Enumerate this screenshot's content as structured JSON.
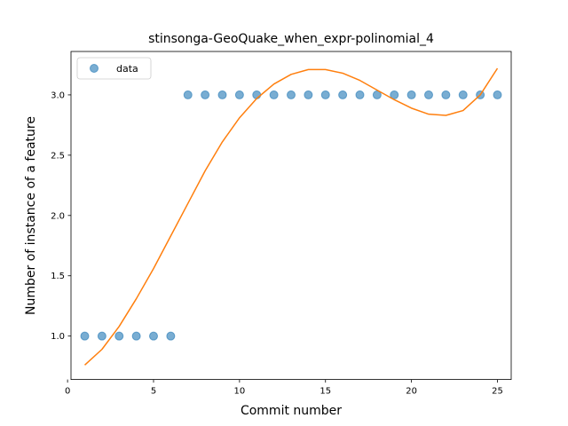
{
  "chart_data": {
    "type": "scatter",
    "title": "stinsonga-GeoQuake_when_expr-polinomial_4",
    "xlabel": "Commit number",
    "ylabel": "Number of instance of a feature",
    "xlim": [
      0.2,
      25.8
    ],
    "ylim": [
      0.64,
      3.36
    ],
    "xticks": [
      0,
      5,
      10,
      15,
      20,
      25
    ],
    "yticks": [
      1.0,
      1.5,
      2.0,
      2.5,
      3.0
    ],
    "xtick_labels": [
      "0",
      "5",
      "10",
      "15",
      "20",
      "25"
    ],
    "ytick_labels": [
      "1.0",
      "1.5",
      "2.0",
      "2.5",
      "3.0"
    ],
    "grid": false,
    "legend_position": "top-left",
    "series": [
      {
        "name": "data",
        "kind": "scatter",
        "color": "#1f77b4",
        "x": [
          1,
          2,
          3,
          4,
          5,
          6,
          7,
          8,
          9,
          10,
          11,
          12,
          13,
          14,
          15,
          16,
          17,
          18,
          19,
          20,
          21,
          22,
          23,
          24,
          25
        ],
        "y": [
          1,
          1,
          1,
          1,
          1,
          1,
          3,
          3,
          3,
          3,
          3,
          3,
          3,
          3,
          3,
          3,
          3,
          3,
          3,
          3,
          3,
          3,
          3,
          3,
          3
        ]
      },
      {
        "kind": "line",
        "color": "#ff7f0e",
        "x": [
          1,
          2,
          3,
          4,
          5,
          6,
          7,
          8,
          9,
          10,
          11,
          12,
          13,
          14,
          15,
          16,
          17,
          18,
          19,
          20,
          21,
          22,
          23,
          24,
          25
        ],
        "y": [
          0.76,
          0.89,
          1.08,
          1.31,
          1.56,
          1.83,
          2.1,
          2.37,
          2.61,
          2.81,
          2.97,
          3.09,
          3.17,
          3.21,
          3.21,
          3.18,
          3.12,
          3.04,
          2.96,
          2.89,
          2.84,
          2.83,
          2.87,
          3.0,
          3.22
        ]
      }
    ]
  }
}
